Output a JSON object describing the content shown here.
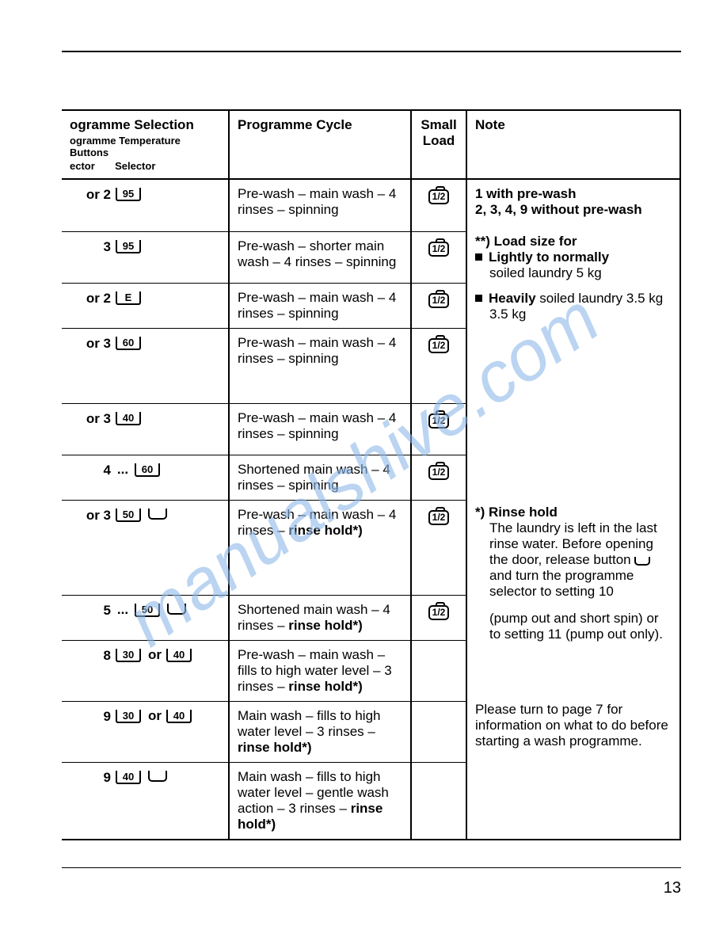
{
  "watermark": "manualshive.com",
  "page_number": "13",
  "headers": {
    "col1_main": "ogramme Selection",
    "col1_sub1": "ogramme Temperature Buttons",
    "col1_sub2": "ector       Selector",
    "col2": "Programme Cycle",
    "col3": "Small Load",
    "col4": "Note"
  },
  "rows": [
    {
      "prog": "or 2",
      "dots": "",
      "temps": [
        "95"
      ],
      "bucket": false,
      "cycle_plain": "Pre-wash – main wash – 4 rinses – spinning",
      "cycle_bold": "",
      "half": true,
      "h": "med"
    },
    {
      "prog": "3",
      "dots": "",
      "temps": [
        "95"
      ],
      "bucket": false,
      "cycle_plain": "Pre-wash – shorter main wash – 4 rinses – spinning",
      "cycle_bold": "",
      "half": true,
      "h": "med"
    },
    {
      "prog": "or 2",
      "dots": "",
      "temps": [
        "E"
      ],
      "bucket": false,
      "cycle_plain": "Pre-wash – main wash – 4 rinses – spinning",
      "cycle_bold": "",
      "half": true,
      "h": ""
    },
    {
      "prog": "or 3",
      "dots": "",
      "temps": [
        "60"
      ],
      "bucket": false,
      "cycle_plain": "Pre-wash – main wash – 4 rinses – spinning",
      "cycle_bold": "",
      "half": true,
      "h": "tall"
    },
    {
      "prog": "or 3",
      "dots": "",
      "temps": [
        "40"
      ],
      "bucket": false,
      "cycle_plain": "Pre-wash – main wash – 4 rinses – spinning",
      "cycle_bold": "",
      "half": true,
      "h": "med"
    },
    {
      "prog": "4",
      "dots": "...",
      "temps": [
        "60"
      ],
      "bucket": false,
      "cycle_plain": "Shortened main wash – 4 rinses – spinning",
      "cycle_bold": "",
      "half": true,
      "h": ""
    },
    {
      "prog": "or 3",
      "dots": "",
      "temps": [
        "50"
      ],
      "bucket": true,
      "cycle_plain": "Pre-wash – main wash – 4 rinses – ",
      "cycle_bold": "rinse hold*)",
      "half": true,
      "h": "xtall"
    },
    {
      "prog": "5",
      "dots": "...",
      "temps": [
        "50"
      ],
      "bucket": true,
      "cycle_plain": "Shortened main wash – 4 rinses – ",
      "cycle_bold": "rinse hold*)",
      "half": true,
      "h": ""
    },
    {
      "prog": "8",
      "dots": "",
      "temps": [
        "30",
        "40"
      ],
      "temp_sep": "or",
      "bucket": false,
      "cycle_plain": "Pre-wash – main wash – fills to high water level – 3 rinses – ",
      "cycle_bold": "rinse hold*)",
      "half": false,
      "h": ""
    },
    {
      "prog": "9",
      "dots": "",
      "temps": [
        "30",
        "40"
      ],
      "temp_sep": "or",
      "bucket": false,
      "cycle_plain": "Main wash – fills to high water level – 3 rinses – ",
      "cycle_bold": "rinse hold*)",
      "half": false,
      "h": ""
    },
    {
      "prog": "9",
      "dots": "",
      "temps": [
        "40"
      ],
      "bucket": true,
      "cycle_plain": "Main wash – fills to high water level – gentle wash action – 3 rinses – ",
      "cycle_bold": "rinse hold*)",
      "half": false,
      "h": ""
    }
  ],
  "notes": {
    "top1": "1 with pre-wash",
    "top2": "2, 3, 4, 9 without pre-wash",
    "load_head": "**) Load size for",
    "load_b1_bold": "Lightly to normally",
    "load_b1_rest": "soiled laundry 5 kg",
    "load_b2_bold": "Heavily",
    "load_b2_rest": " soiled laundry 3.5 kg",
    "rinse_head": "*) Rinse hold",
    "rinse_body1": "The laundry is left in the last rinse water. Before opening the door, release button ",
    "rinse_body2": " and turn the programme selector to setting 10",
    "rinse_body3": "(pump out and short spin) or to setting 11 (pump out only).",
    "page7": "Please turn to page 7 for information on what to do before starting a wash programme."
  }
}
